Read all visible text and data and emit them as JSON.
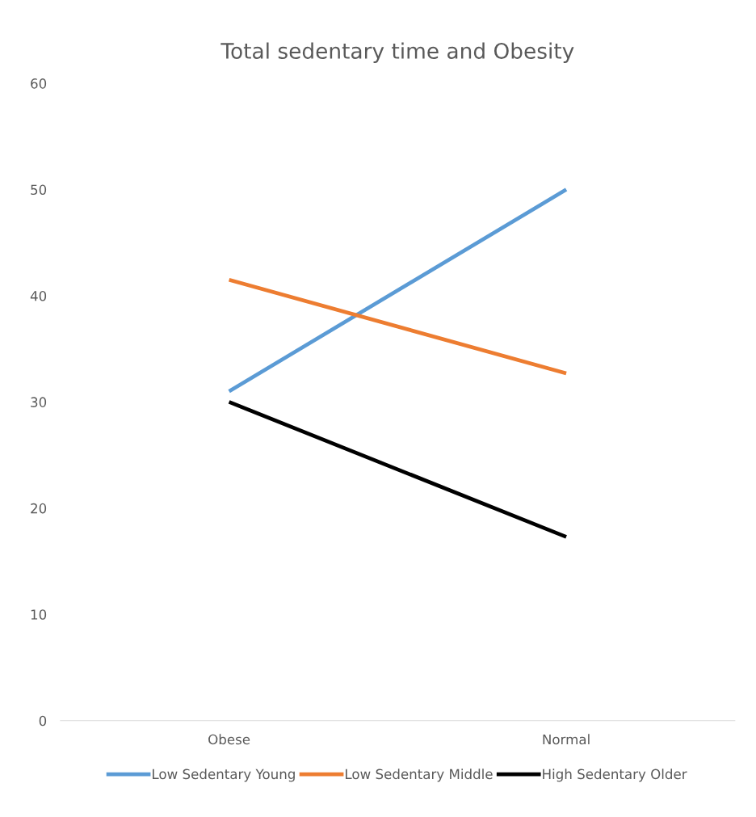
{
  "chart_data": {
    "type": "line",
    "title": "Total sedentary time and Obesity",
    "categories": [
      "Obese",
      "Normal"
    ],
    "series": [
      {
        "name": "Low Sedentary Young",
        "color": "#5b9bd5",
        "values": [
          31,
          50
        ]
      },
      {
        "name": "Low Sedentary Middle",
        "color": "#ed7d31",
        "values": [
          41.5,
          32.7
        ]
      },
      {
        "name": "High Sedentary Older",
        "color": "#000000",
        "values": [
          30,
          17.3
        ]
      }
    ],
    "ylim": [
      0,
      60
    ],
    "yticks": [
      0,
      10,
      20,
      30,
      40,
      50,
      60
    ],
    "grid": false,
    "legend": "bottom",
    "marker": "none",
    "line_style": "solid"
  }
}
